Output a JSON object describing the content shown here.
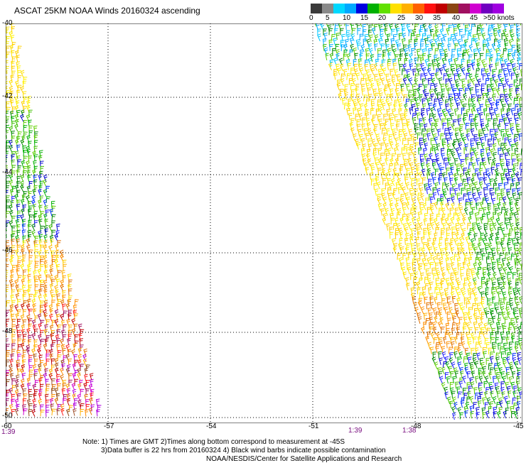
{
  "title": "ASCAT 25KM NOAA Winds 20160324 ascending",
  "legend": {
    "colors": [
      "#3a3a3a",
      "#8a8a8a",
      "#00d8ff",
      "#00a8ff",
      "#0000e0",
      "#00b000",
      "#60e000",
      "#ffe000",
      "#ffb000",
      "#ff6000",
      "#ff1010",
      "#c00000",
      "#8b4513",
      "#a01060",
      "#d000d0",
      "#7000c0",
      "#a000e0"
    ],
    "labels": [
      "0",
      "5",
      "10",
      "15",
      "20",
      "25",
      "30",
      "35",
      "40",
      "45",
      ">50 knots"
    ]
  },
  "map": {
    "lat_labels": [
      "-40",
      "-42",
      "-44",
      "-46",
      "-48",
      "-50"
    ],
    "lon_labels": [
      "-60",
      "-57",
      "-54",
      "-51",
      "-48",
      "-45"
    ],
    "time_labels": [
      "1:39",
      "1:39",
      "1:38"
    ]
  },
  "notes": [
    "Note: 1) Times are GMT 2)Times along bottom correspond to measurement at -45S",
    "3)Data buffer is 22 hrs from 20160324 4) Black wind barbs indicate possible contamination",
    "NOAA/NESDIS/Center for Satellite Applications and Research"
  ]
}
